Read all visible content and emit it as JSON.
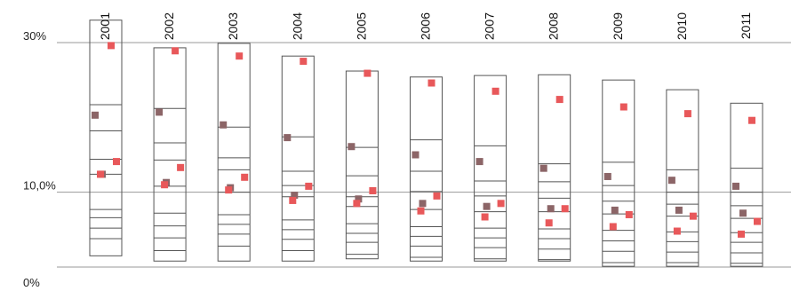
{
  "chart_data": {
    "type": "scatter",
    "title": "",
    "xlabel": "",
    "ylabel": "",
    "y_unit": "%",
    "ylim": [
      0,
      30
    ],
    "y_ticks": [
      {
        "value": 30,
        "label": "30%"
      },
      {
        "value": 10,
        "label": "10,0%"
      },
      {
        "value": 0,
        "label": "0%"
      }
    ],
    "x_ticks_rotated": true,
    "categories": [
      "2001",
      "2002",
      "2003",
      "2004",
      "2005",
      "2006",
      "2007",
      "2008",
      "2009",
      "2010",
      "2011"
    ],
    "columns": [
      {
        "year": "2001",
        "box": [
          1.5,
          33.0
        ],
        "levels": [
          21.7,
          18.2,
          14.4,
          12.4,
          7.7,
          6.6,
          5.2,
          3.8
        ],
        "points": [
          {
            "y": 20.3,
            "color": "dark"
          },
          {
            "y": 12.4,
            "color": "dark"
          },
          {
            "y": 29.6,
            "color": "red"
          },
          {
            "y": 14.1,
            "color": "red"
          },
          {
            "y": 12.4,
            "color": "red"
          }
        ]
      },
      {
        "year": "2002",
        "box": [
          0.8,
          29.3
        ],
        "levels": [
          21.2,
          16.6,
          14.3,
          10.8,
          7.2,
          5.5,
          3.9,
          2.2
        ],
        "points": [
          {
            "y": 20.7,
            "color": "dark"
          },
          {
            "y": 11.3,
            "color": "dark"
          },
          {
            "y": 28.9,
            "color": "red"
          },
          {
            "y": 13.3,
            "color": "red"
          },
          {
            "y": 11.0,
            "color": "red"
          }
        ]
      },
      {
        "year": "2003",
        "box": [
          0.8,
          29.9
        ],
        "levels": [
          18.7,
          14.6,
          13.0,
          10.0,
          7.0,
          5.7,
          4.4,
          2.8
        ],
        "points": [
          {
            "y": 19.0,
            "color": "dark"
          },
          {
            "y": 10.6,
            "color": "dark"
          },
          {
            "y": 28.2,
            "color": "red"
          },
          {
            "y": 12.0,
            "color": "red"
          },
          {
            "y": 10.3,
            "color": "red"
          }
        ]
      },
      {
        "year": "2004",
        "box": [
          0.8,
          28.2
        ],
        "levels": [
          17.4,
          12.8,
          10.9,
          9.4,
          6.3,
          5.0,
          3.7,
          2.2
        ],
        "points": [
          {
            "y": 17.3,
            "color": "dark"
          },
          {
            "y": 9.6,
            "color": "dark"
          },
          {
            "y": 27.5,
            "color": "red"
          },
          {
            "y": 10.8,
            "color": "red"
          },
          {
            "y": 8.9,
            "color": "red"
          }
        ]
      },
      {
        "year": "2005",
        "box": [
          1.1,
          26.2
        ],
        "levels": [
          16.0,
          12.2,
          9.4,
          8.1,
          5.8,
          4.5,
          3.3,
          1.7
        ],
        "points": [
          {
            "y": 16.1,
            "color": "dark"
          },
          {
            "y": 9.1,
            "color": "dark"
          },
          {
            "y": 25.9,
            "color": "red"
          },
          {
            "y": 10.2,
            "color": "red"
          },
          {
            "y": 8.5,
            "color": "red"
          }
        ]
      },
      {
        "year": "2006",
        "box": [
          0.8,
          25.4
        ],
        "levels": [
          17.0,
          12.8,
          10.1,
          7.7,
          5.4,
          4.1,
          2.8,
          1.3
        ],
        "points": [
          {
            "y": 15.0,
            "color": "dark"
          },
          {
            "y": 8.5,
            "color": "dark"
          },
          {
            "y": 24.6,
            "color": "red"
          },
          {
            "y": 9.5,
            "color": "red"
          },
          {
            "y": 7.5,
            "color": "red"
          }
        ]
      },
      {
        "year": "2007",
        "box": [
          0.8,
          25.6
        ],
        "levels": [
          16.2,
          11.5,
          9.5,
          7.4,
          5.2,
          3.9,
          2.6,
          1.1
        ],
        "points": [
          {
            "y": 14.1,
            "color": "dark"
          },
          {
            "y": 8.1,
            "color": "dark"
          },
          {
            "y": 23.5,
            "color": "red"
          },
          {
            "y": 8.5,
            "color": "red"
          },
          {
            "y": 6.7,
            "color": "red"
          }
        ]
      },
      {
        "year": "2008",
        "box": [
          0.8,
          25.7
        ],
        "levels": [
          13.8,
          11.4,
          9.2,
          7.4,
          5.1,
          3.8,
          2.4,
          1.0
        ],
        "points": [
          {
            "y": 13.2,
            "color": "dark"
          },
          {
            "y": 7.8,
            "color": "dark"
          },
          {
            "y": 22.4,
            "color": "red"
          },
          {
            "y": 7.8,
            "color": "red"
          },
          {
            "y": 5.9,
            "color": "red"
          }
        ]
      },
      {
        "year": "2009",
        "box": [
          0.1,
          25.0
        ],
        "levels": [
          14.0,
          10.9,
          8.8,
          7.1,
          4.9,
          3.5,
          2.1,
          0.6
        ],
        "points": [
          {
            "y": 12.1,
            "color": "dark"
          },
          {
            "y": 7.6,
            "color": "dark"
          },
          {
            "y": 21.4,
            "color": "red"
          },
          {
            "y": 7.0,
            "color": "red"
          },
          {
            "y": 5.4,
            "color": "red"
          }
        ]
      },
      {
        "year": "2010",
        "box": [
          0.1,
          23.7
        ],
        "levels": [
          13.0,
          10.0,
          8.4,
          6.8,
          4.7,
          3.4,
          2.0,
          0.6
        ],
        "points": [
          {
            "y": 11.6,
            "color": "dark"
          },
          {
            "y": 7.6,
            "color": "dark"
          },
          {
            "y": 20.5,
            "color": "red"
          },
          {
            "y": 6.8,
            "color": "red"
          },
          {
            "y": 4.8,
            "color": "red"
          }
        ]
      },
      {
        "year": "2011",
        "box": [
          0.1,
          21.9
        ],
        "levels": [
          13.2,
          10.0,
          8.2,
          6.5,
          4.6,
          3.3,
          1.9,
          0.5
        ],
        "points": [
          {
            "y": 10.8,
            "color": "dark"
          },
          {
            "y": 7.2,
            "color": "dark"
          },
          {
            "y": 19.6,
            "color": "red"
          },
          {
            "y": 6.1,
            "color": "red"
          },
          {
            "y": 4.4,
            "color": "red"
          }
        ]
      }
    ],
    "colors": {
      "dark": "#8c6567",
      "red": "#e8585a",
      "box": "#555555",
      "grid": "#9a9a9a"
    },
    "grid": true,
    "legend": "none"
  }
}
